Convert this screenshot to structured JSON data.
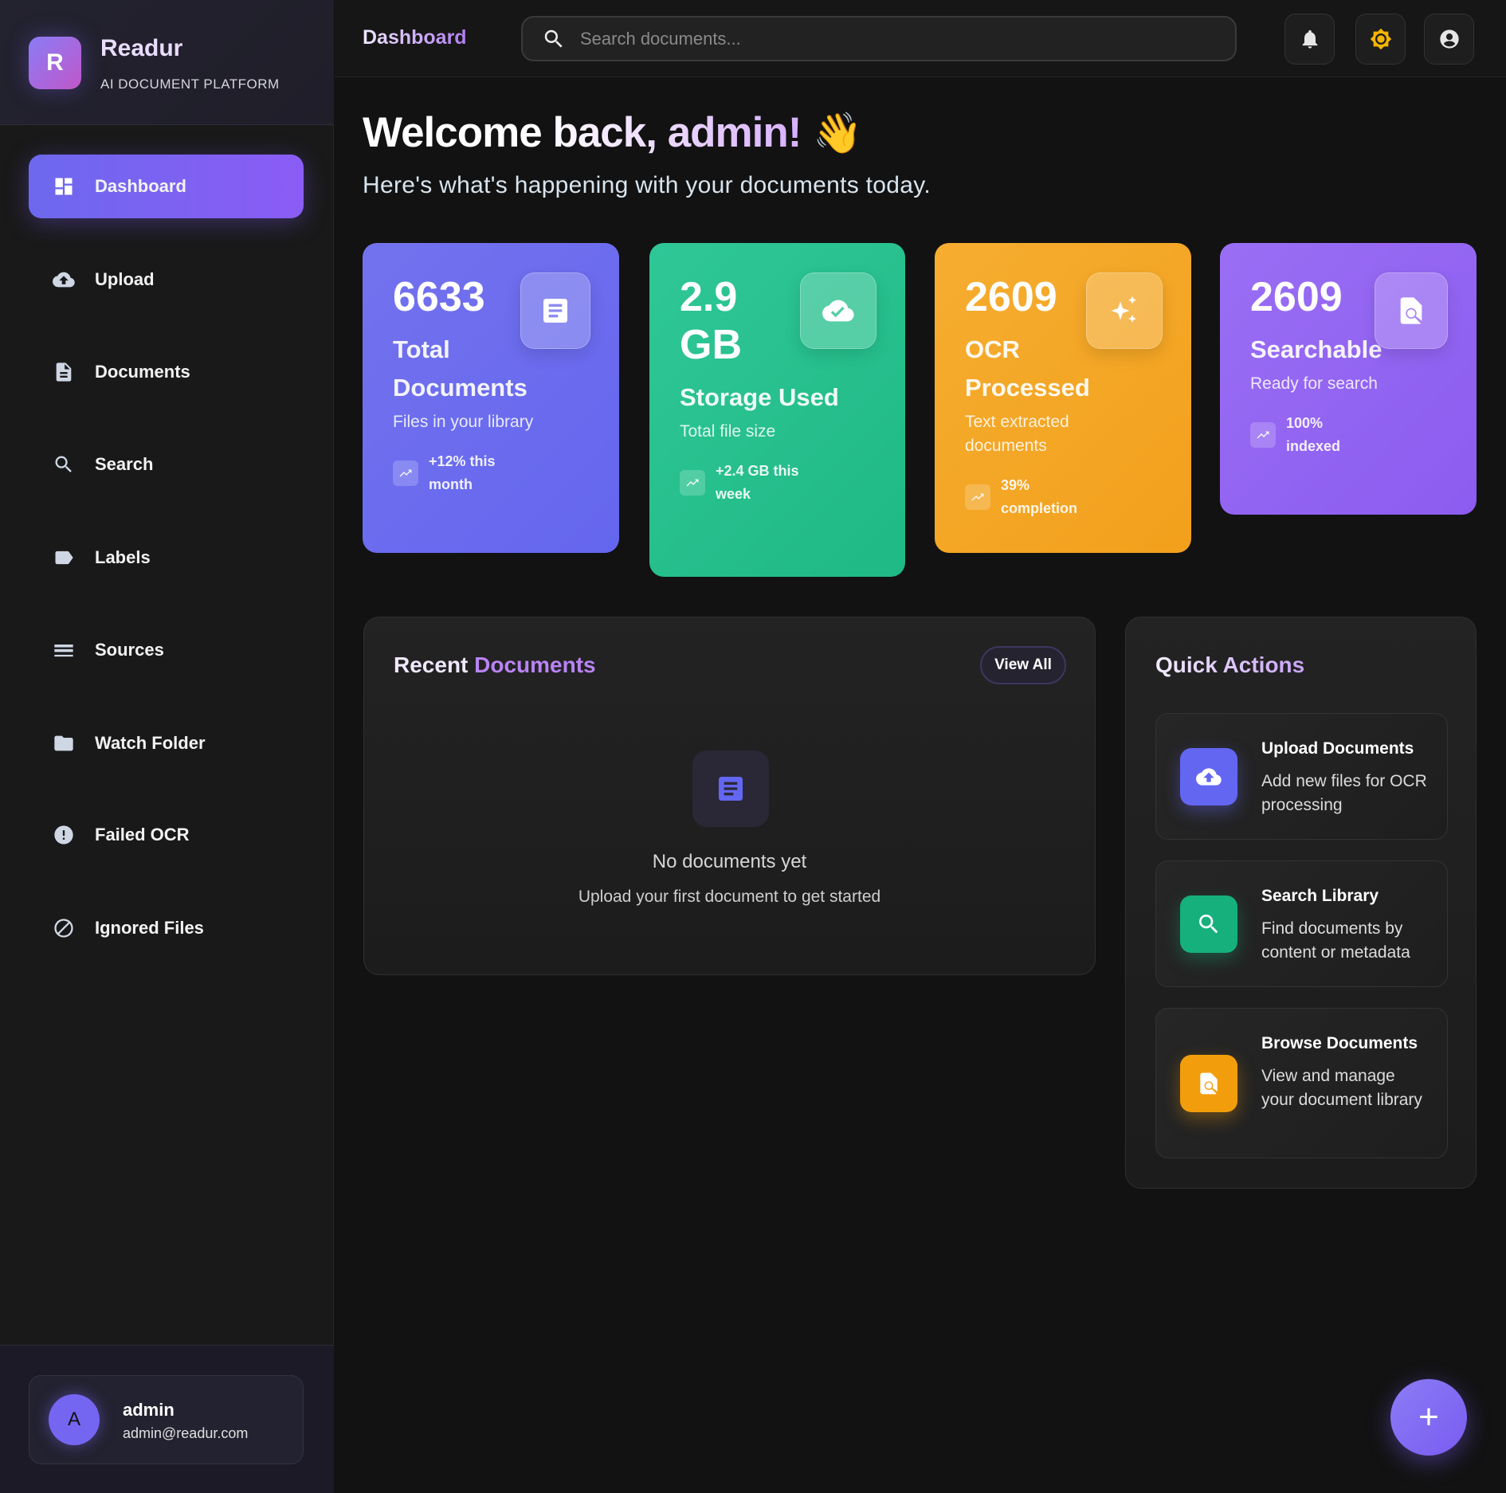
{
  "brand": {
    "name": "Readur",
    "tagline": "AI DOCUMENT PLATFORM",
    "logo_letter": "R"
  },
  "sidebar": {
    "items": [
      {
        "label": "Dashboard",
        "icon": "dashboard-icon",
        "active": true
      },
      {
        "label": "Upload",
        "icon": "cloud-upload-icon"
      },
      {
        "label": "Documents",
        "icon": "document-icon"
      },
      {
        "label": "Search",
        "icon": "search-icon"
      },
      {
        "label": "Labels",
        "icon": "label-icon"
      },
      {
        "label": "Sources",
        "icon": "list-icon"
      },
      {
        "label": "Watch Folder",
        "icon": "folder-icon"
      },
      {
        "label": "Failed OCR",
        "icon": "error-icon"
      },
      {
        "label": "Ignored Files",
        "icon": "block-icon"
      }
    ]
  },
  "user": {
    "initial": "A",
    "name": "admin",
    "email": "admin@readur.com"
  },
  "header": {
    "title": "Dashboard",
    "search_placeholder": "Search documents..."
  },
  "welcome": {
    "title": "Welcome back, admin!",
    "emoji": "👋",
    "subtitle": "Here's what's happening with your documents today."
  },
  "stats": [
    {
      "value": "6633",
      "label": "Total Documents",
      "sub": "Files in your library",
      "trend": "+12% this month",
      "color": "#6c6ef0",
      "icon": "document-icon"
    },
    {
      "value": "2.9 GB",
      "label": "Storage Used",
      "sub": "Total file size",
      "trend": "+2.4 GB this week",
      "color": "#22bf8a",
      "icon": "cloud-done-icon"
    },
    {
      "value": "2609",
      "label": "OCR Processed",
      "sub": "Text extracted documents",
      "trend": "39% completion",
      "color": "#f4a522",
      "icon": "sparkle-icon"
    },
    {
      "value": "2609",
      "label": "Searchable",
      "sub": "Ready for search",
      "trend": "100% indexed",
      "color": "#9368f2",
      "icon": "find-in-page-icon"
    }
  ],
  "recent": {
    "title_a": "Recent ",
    "title_b": "Documents",
    "view_all": "View All",
    "empty_title": "No documents yet",
    "empty_sub": "Upload your first document to get started"
  },
  "quick": {
    "title": "Quick Actions",
    "items": [
      {
        "title": "Upload Documents",
        "desc": "Add new files for OCR processing",
        "color": "#6366f1",
        "icon": "cloud-upload-icon"
      },
      {
        "title": "Search Library",
        "desc": "Find documents by content or metadata",
        "color": "#16b07d",
        "icon": "search-icon"
      },
      {
        "title": "Browse Documents",
        "desc": "View and manage your document library",
        "color": "#f29e0c",
        "icon": "find-in-page-icon"
      }
    ]
  },
  "fab": {
    "label": "+"
  }
}
